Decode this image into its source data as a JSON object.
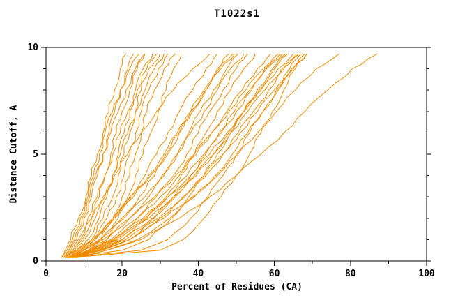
{
  "page": {
    "background": "#ffffff"
  },
  "chart_data": {
    "type": "line",
    "title": "T1022s1",
    "xlabel": "Percent of Residues (CA)",
    "ylabel": "Distance Cutoff, A",
    "xlim": [
      0,
      100
    ],
    "ylim": [
      0,
      10
    ],
    "xticks": [
      0,
      20,
      40,
      60,
      80,
      100
    ],
    "xticks_minor": [
      10,
      30,
      50,
      70,
      90
    ],
    "yticks": [
      0,
      5,
      10
    ],
    "yticks_minor": [
      1,
      2,
      3,
      4,
      6,
      7,
      8,
      9
    ],
    "line_color": "#f08c00",
    "axis_color": "#000000",
    "legend": "none",
    "grid": "off",
    "y_grid": [
      0.15,
      0.5,
      1,
      2,
      3,
      4,
      5,
      6,
      7,
      8,
      9,
      9.7
    ],
    "series": [
      {
        "values": [
          4.5,
          6,
          8,
          10,
          12,
          13.5,
          15,
          16.5,
          18,
          19.5,
          21.5,
          23
        ]
      },
      {
        "values": [
          5,
          7,
          9.5,
          12,
          14,
          15.5,
          17,
          18.5,
          20,
          22,
          24,
          26
        ]
      },
      {
        "values": [
          5,
          8,
          11,
          14,
          16,
          17.5,
          19,
          20.5,
          22,
          23.5,
          25.5,
          28
        ]
      },
      {
        "values": [
          5.5,
          9,
          12,
          15,
          17.5,
          19,
          20.5,
          22,
          23.5,
          25,
          27,
          30
        ]
      },
      {
        "values": [
          6,
          10,
          13,
          16,
          18.5,
          20.5,
          22,
          23.5,
          25,
          27,
          29.5,
          32
        ]
      },
      {
        "values": [
          6,
          11,
          14.5,
          17.5,
          20,
          22,
          23.5,
          25,
          26.5,
          28.5,
          31,
          34
        ]
      },
      {
        "values": [
          4,
          5.5,
          7,
          9,
          11,
          12.5,
          14,
          15.5,
          17.5,
          19.5,
          22,
          24.5
        ]
      },
      {
        "values": [
          4.5,
          6.5,
          8.5,
          11,
          13.5,
          15.5,
          17.5,
          19.5,
          21.5,
          24,
          26.5,
          29
        ]
      },
      {
        "values": [
          5,
          7.5,
          10,
          13,
          15.5,
          17.5,
          19.5,
          21.5,
          23.5,
          26,
          28.5,
          31
        ]
      },
      {
        "values": [
          7,
          12,
          16,
          19,
          21.5,
          23.5,
          25.5,
          27.5,
          29.5,
          31.5,
          33.5,
          35.5
        ]
      },
      {
        "values": [
          5.5,
          9,
          13,
          18,
          22,
          26,
          29,
          32,
          35,
          38.5,
          42,
          45
        ]
      },
      {
        "values": [
          6,
          10,
          14.5,
          20,
          24.5,
          28.5,
          32,
          35,
          38,
          41.5,
          45,
          48
        ]
      },
      {
        "values": [
          6.5,
          11,
          16,
          22,
          27,
          31,
          34.5,
          37.5,
          40.5,
          44,
          47.5,
          50.5
        ]
      },
      {
        "values": [
          7,
          12.5,
          18,
          24,
          29,
          33.5,
          37,
          40,
          43,
          46.5,
          50,
          53
        ]
      },
      {
        "values": [
          5,
          8,
          12,
          17.5,
          22.5,
          27,
          31,
          34.5,
          38,
          42,
          46,
          49.5
        ]
      },
      {
        "values": [
          7.5,
          14,
          20,
          26.5,
          31.5,
          35.5,
          39,
          42,
          45,
          48.5,
          52,
          55
        ]
      },
      {
        "values": [
          6,
          11,
          17,
          24,
          30,
          35,
          39.5,
          43.5,
          47.5,
          51.5,
          55.5,
          59
        ]
      },
      {
        "values": [
          6.5,
          12,
          18.5,
          26,
          32,
          37,
          41.5,
          45.5,
          49.5,
          53.5,
          57.5,
          61
        ]
      },
      {
        "values": [
          7,
          13,
          20,
          28,
          34,
          39.5,
          44,
          48,
          52,
          56,
          60,
          63.5
        ]
      },
      {
        "values": [
          7.5,
          14.5,
          22,
          30,
          36.5,
          42,
          46.5,
          50.5,
          54.5,
          58.5,
          62.5,
          66
        ]
      },
      {
        "values": [
          8,
          16,
          24,
          32.5,
          39,
          44.5,
          49,
          53,
          57,
          61,
          65,
          68.5
        ]
      },
      {
        "values": [
          6,
          10,
          15,
          22,
          28.5,
          34,
          39,
          43.5,
          48,
          52.5,
          57,
          61.5
        ]
      },
      {
        "values": [
          6.5,
          11.5,
          17.5,
          25.5,
          32,
          38,
          43,
          47.5,
          52,
          56.5,
          61,
          65
        ]
      },
      {
        "values": [
          7,
          13.5,
          21,
          29.5,
          36,
          41.5,
          46.5,
          51,
          55.5,
          60,
          64.5,
          68
        ]
      },
      {
        "values": [
          5,
          20,
          27,
          33,
          37.5,
          41.5,
          45,
          48.5,
          52,
          55.5,
          59.5,
          63
        ]
      },
      {
        "values": [
          5.5,
          25,
          32,
          38,
          42.5,
          46.5,
          50,
          53.5,
          57,
          60.5,
          64,
          67
        ]
      },
      {
        "values": [
          6,
          30,
          36,
          41.5,
          46,
          50,
          53.5,
          56.5,
          59.5,
          62.5,
          65.5,
          68.5
        ]
      },
      {
        "values": [
          5,
          15,
          22,
          28.5,
          33.5,
          38,
          42,
          46,
          50,
          54,
          58,
          62
        ]
      },
      {
        "values": [
          7,
          14,
          22,
          31,
          38.5,
          45,
          50.5,
          55.5,
          60.5,
          65.5,
          71,
          77
        ]
      },
      {
        "values": [
          8,
          16,
          25,
          35,
          43,
          50,
          56.5,
          62.5,
          68,
          74,
          80.5,
          87
        ]
      },
      {
        "values": [
          4,
          5,
          6.5,
          8.5,
          10.5,
          12,
          13.5,
          15,
          16.5,
          18,
          19.5,
          21
        ]
      },
      {
        "values": [
          4.5,
          6,
          7.5,
          9.5,
          11.5,
          13,
          15,
          17,
          19,
          21,
          23.5,
          26
        ]
      },
      {
        "values": [
          5.5,
          8.5,
          12.5,
          18,
          23,
          27.5,
          31.5,
          35,
          38.5,
          42,
          45.5,
          49
        ]
      },
      {
        "values": [
          6,
          9.5,
          14,
          20.5,
          26,
          30.5,
          34.5,
          38,
          41.5,
          45,
          48.5,
          52
        ]
      },
      {
        "values": [
          5,
          7,
          9,
          12,
          15,
          18,
          21.5,
          25,
          29,
          33.5,
          38.5,
          43
        ]
      },
      {
        "values": [
          6.5,
          12.5,
          19,
          27,
          33.5,
          39,
          44,
          48.5,
          53,
          57.5,
          62,
          66.5
        ]
      }
    ]
  }
}
